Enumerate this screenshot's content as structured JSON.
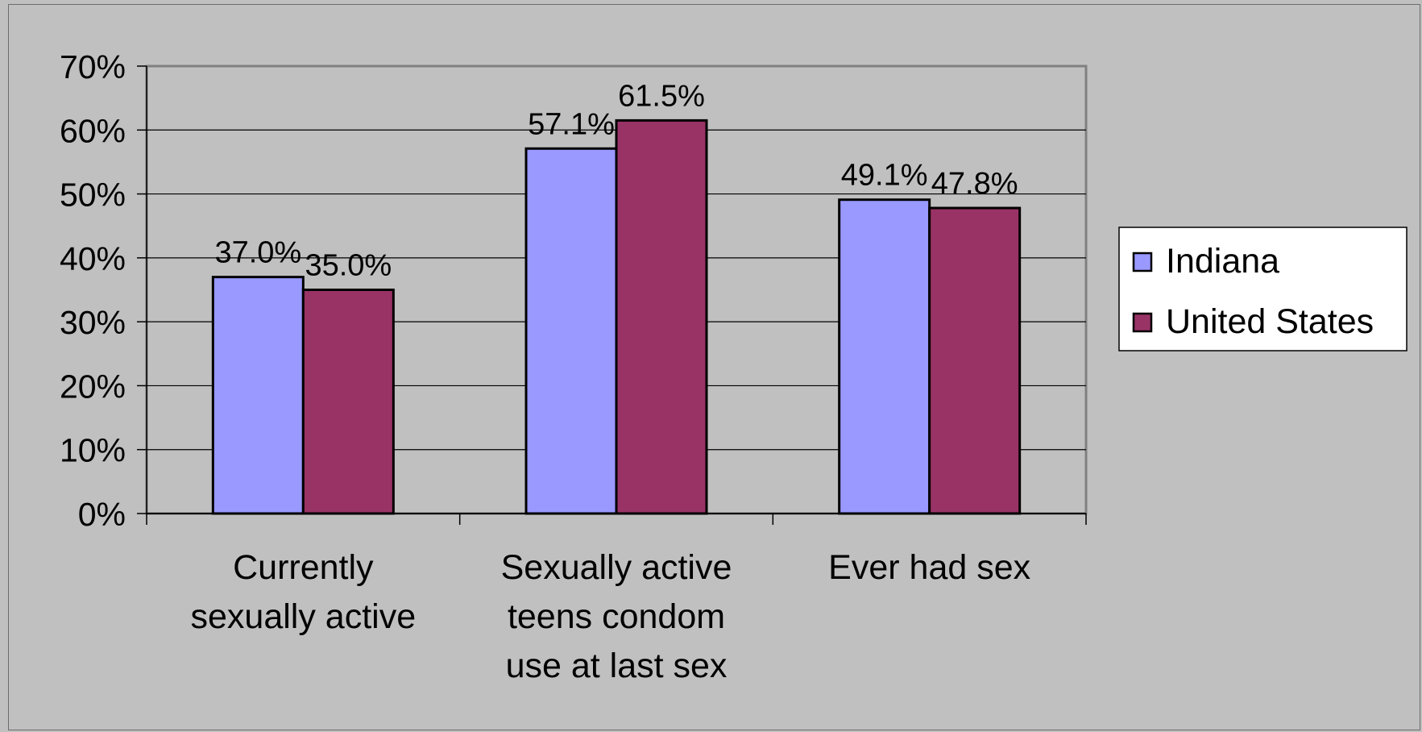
{
  "chart_data": {
    "type": "bar",
    "categories": [
      [
        "Currently",
        "sexually active"
      ],
      [
        "Sexually active",
        "teens condom",
        "use at last sex"
      ],
      [
        "Ever had sex"
      ]
    ],
    "series": [
      {
        "name": "Indiana",
        "values": [
          37.0,
          57.1,
          49.1
        ],
        "labels": [
          "37.0%",
          "57.1%",
          "49.1%"
        ],
        "color": "#9999ff"
      },
      {
        "name": "United States",
        "values": [
          35.0,
          61.5,
          47.8
        ],
        "labels": [
          "35.0%",
          "61.5%",
          "47.8%"
        ],
        "color": "#993366"
      }
    ],
    "ylim": [
      0,
      70
    ],
    "yticks": [
      "0%",
      "10%",
      "20%",
      "30%",
      "40%",
      "50%",
      "60%",
      "70%"
    ],
    "grid": true,
    "legend": "right",
    "background": "#c0c0c0"
  }
}
